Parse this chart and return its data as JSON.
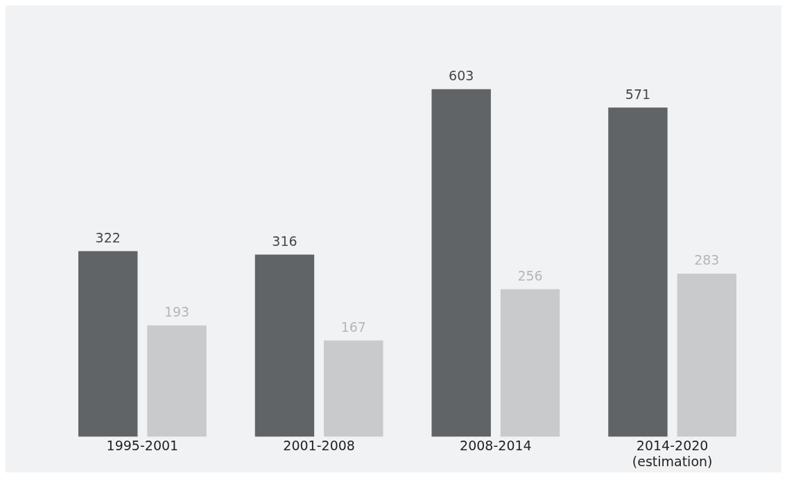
{
  "chart_data": {
    "type": "bar",
    "categories": [
      "1995-2001",
      "2001-2008",
      "2008-2014",
      "2014-2020\n(estimation)"
    ],
    "series": [
      {
        "color": "#606466",
        "values": [
          322,
          316,
          603,
          571
        ]
      },
      {
        "color": "#c8cacc",
        "values": [
          193,
          167,
          256,
          283
        ]
      }
    ],
    "tick_labels": "x",
    "data_labels": true,
    "grid": false
  }
}
